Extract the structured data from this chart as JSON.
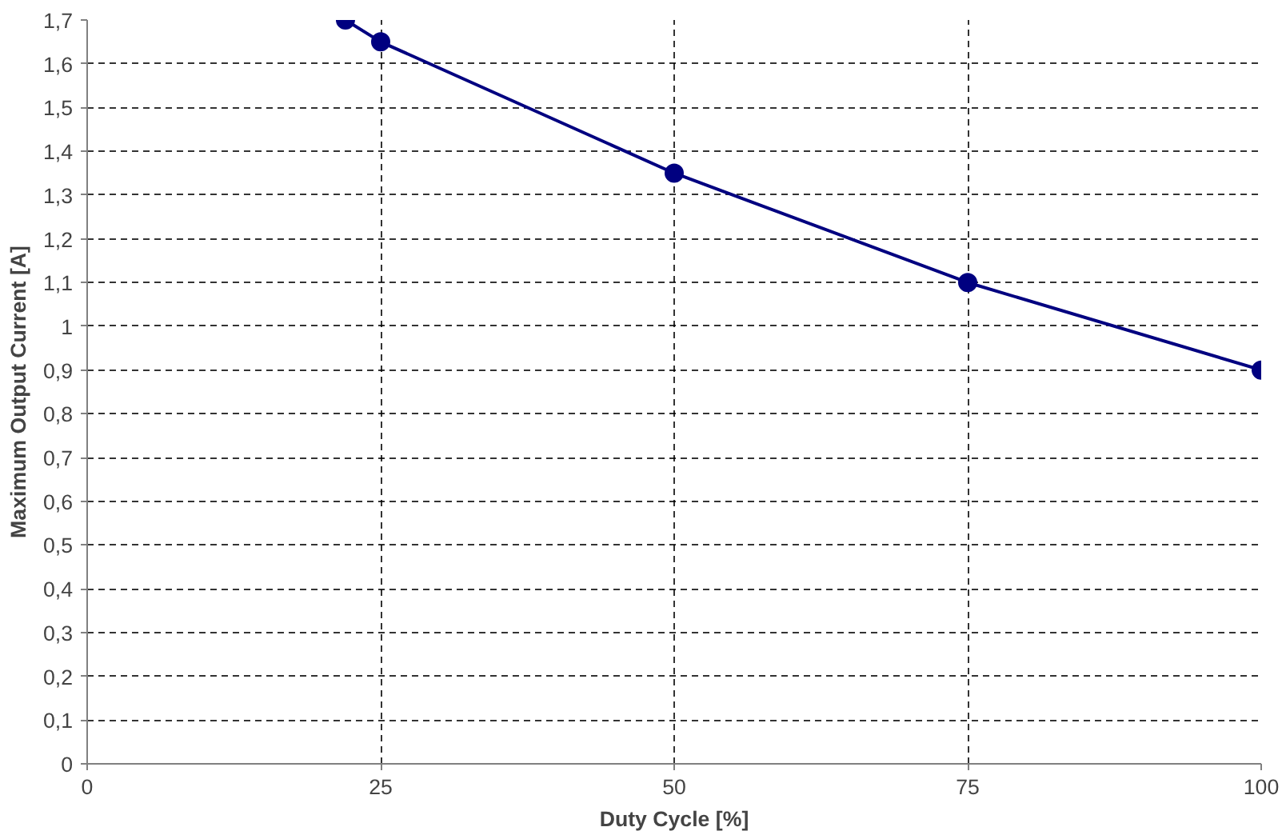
{
  "chart_data": {
    "type": "line",
    "xlabel": "Duty Cycle [%]",
    "ylabel": "Maximum Output Current [A]",
    "x": [
      22,
      25,
      50,
      75,
      100
    ],
    "series": [
      {
        "color": "#000080",
        "values": [
          1.7,
          1.65,
          1.35,
          1.1,
          0.9
        ]
      }
    ],
    "xlim": [
      0,
      100
    ],
    "xticks": [
      0,
      25,
      50,
      75,
      100
    ],
    "ylim": [
      0,
      1.7
    ],
    "yticks": [
      0,
      {
        "value": 0.1,
        "label": "0,1"
      },
      {
        "value": 0.2,
        "label": "0,2"
      },
      {
        "value": 0.3,
        "label": "0,3"
      },
      {
        "value": 0.4,
        "label": "0,4"
      },
      {
        "value": 0.5,
        "label": "0,5"
      },
      {
        "value": 0.6,
        "label": "0,6"
      },
      {
        "value": 0.7,
        "label": "0,7"
      },
      {
        "value": 0.8,
        "label": "0,8"
      },
      {
        "value": 0.9,
        "label": "0,9"
      },
      1,
      {
        "value": 1.1,
        "label": "1,1"
      },
      {
        "value": 1.2,
        "label": "1,2"
      },
      {
        "value": 1.3,
        "label": "1,3"
      },
      {
        "value": 1.4,
        "label": "1,4"
      },
      {
        "value": 1.5,
        "label": "1,5"
      },
      {
        "value": 1.6,
        "label": "1,6"
      },
      {
        "value": 1.7,
        "label": "1,7"
      }
    ],
    "grid": true,
    "marker": "circle",
    "line_style": "solid"
  }
}
